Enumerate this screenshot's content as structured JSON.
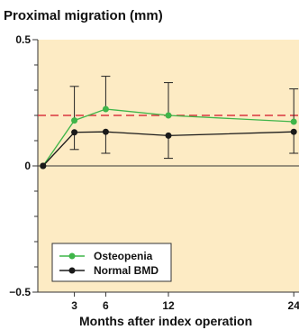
{
  "chart_data": {
    "type": "line",
    "title": "Proximal migration (mm)",
    "xlabel": "Months after index operation",
    "ylabel": "",
    "x": [
      0,
      3,
      6,
      12,
      24
    ],
    "x_ticks": [
      3,
      6,
      12,
      24
    ],
    "x_tick_labels": [
      "3",
      "6",
      "12",
      "24"
    ],
    "xlim": [
      -0.5,
      24.5
    ],
    "ylim": [
      -0.5,
      0.5
    ],
    "y_ticks": [
      0.5,
      0,
      -0.5
    ],
    "y_tick_labels": [
      "0.5",
      "0",
      "−0.5"
    ],
    "reference_line": {
      "y": 0.2,
      "color": "#d9343f",
      "style": "dashed"
    },
    "background_color": "#fdebc4",
    "legend_position": "bottom-left",
    "series": [
      {
        "name": "Osteopenia",
        "color": "#3fb549",
        "values": [
          0,
          0.18,
          0.225,
          0.2,
          0.175
        ],
        "error_upper": [
          null,
          0.315,
          0.355,
          0.33,
          0.305
        ]
      },
      {
        "name": "Normal BMD",
        "color": "#1a1a1a",
        "values": [
          0,
          0.133,
          0.135,
          0.12,
          0.135
        ],
        "error_lower": [
          null,
          0.065,
          0.05,
          0.03,
          0.05
        ]
      }
    ]
  }
}
